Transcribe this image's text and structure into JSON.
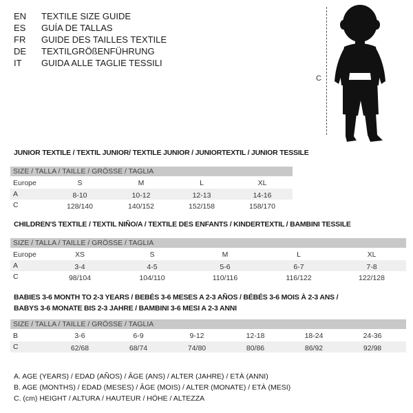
{
  "header": {
    "languages": [
      {
        "code": "EN",
        "text": "TEXTILE SIZE GUIDE"
      },
      {
        "code": "ES",
        "text": "GUÍA DE TALLAS"
      },
      {
        "code": "FR",
        "text": "GUIDE DES TAILLES TEXTILE"
      },
      {
        "code": "DE",
        "text": "TEXTILGRÖßENFÜHRUNG"
      },
      {
        "code": "IT",
        "text": "GUIDA ALLE TAGLIE TESSILI"
      }
    ],
    "figure_label": "C"
  },
  "junior": {
    "title": "JUNIOR TEXTILE / TEXTIL JUNIOR/ TEXTILE JUNIOR / JUNIORTEXTIL / JUNIOR TESSILE",
    "size_header": "SIZE / TALLA / TAILLE / GRÖSSE / TAGLIA",
    "rows": [
      {
        "label": "Europe",
        "values": [
          "S",
          "M",
          "L",
          "XL"
        ]
      },
      {
        "label": "A",
        "values": [
          "8-10",
          "10-12",
          "12-13",
          "14-16"
        ]
      },
      {
        "label": "C",
        "values": [
          "128/140",
          "140/152",
          "152/158",
          "158/170"
        ]
      }
    ]
  },
  "children": {
    "title": "CHILDREN'S TEXTILE / TEXTIL NIÑO/A / TEXTILE DES ENFANTS / KINDERTEXTIL / BAMBINI TESSILE",
    "size_header": "SIZE / TALLA / TAILLE / GRÖSSE / TAGLIA",
    "rows": [
      {
        "label": "Europe",
        "values": [
          "XS",
          "S",
          "M",
          "L",
          "XL"
        ]
      },
      {
        "label": "A",
        "values": [
          "3-4",
          "4-5",
          "5-6",
          "6-7",
          "7-8"
        ]
      },
      {
        "label": "C",
        "values": [
          "98/104",
          "104/110",
          "110/116",
          "116/122",
          "122/128"
        ]
      }
    ]
  },
  "babies": {
    "title_line1": "BABIES 3-6 MONTH TO 2-3 YEARS / BEBÉS 3-6 MESES A 2-3 AÑOS / BÉBÉS 3-6 MOIS À 2-3 ANS /",
    "title_line2": "BABYS 3-6 MONATE BIS 2-3 JAHRE / BAMBINI 3-6 MESI A 2-3 ANNI",
    "size_header": "SIZE / TALLA / TAILLE / GRÖSSE / TAGLIA",
    "rows": [
      {
        "label": "B",
        "values": [
          "3-6",
          "6-9",
          "9-12",
          "12-18",
          "18-24",
          "24-36"
        ]
      },
      {
        "label": "C",
        "values": [
          "62/68",
          "68/74",
          "74/80",
          "80/86",
          "86/92",
          "92/98"
        ]
      }
    ]
  },
  "legend": [
    "A. AGE (YEARS) / EDAD (AÑOS) / ÂGE (ANS) / ALTER (JAHRE) / ETÀ (ANNI)",
    "B. AGE (MONTHS) / EDAD (MESES) / ÂGE (MOIS) / ALTER (MONATE) / ETÀ (MESI)",
    "C. (cm) HEIGHT / ALTURA / HAUTEUR / HÖHE / ALTEZZA"
  ]
}
